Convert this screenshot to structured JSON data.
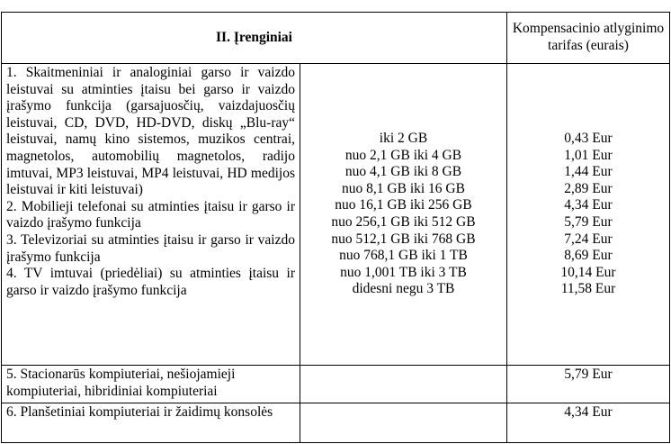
{
  "table": {
    "header": {
      "devices": "II. Įrenginiai",
      "tariff": "Kompensacinio atlyginimo tarifas (eurais)"
    },
    "rows": [
      {
        "items": [
          "1. Skaitmeniniai ir analoginiai garso ir vaizdo leistuvai su atminties įtaisu bei garso ir vaizdo įrašymo funkcija (garsajuosčių, vaizdajuosčių leistuvai, CD, DVD, HD-DVD, diskų „Blu-ray“ leistuvai, namų kino sistemos, muzikos centrai, magnetolos, automobilių magnetolos, radijo imtuvai, MP3 leistuvai, MP4 leistuvai, HD medijos leistuvai ir kiti leistuvai)",
          "2. Mobilieji telefonai su atminties įtaisu ir garso ir vaizdo įrašymo funkcija",
          "3. Televizoriai su atminties įtaisu ir garso ir vaizdo įrašymo funkcija",
          "4. TV imtuvai (priedėliai) su atminties įtaisu ir garso ir vaizdo įrašymo funkcija"
        ],
        "capacities": [
          "iki 2 GB",
          "nuo 2,1 GB iki 4 GB",
          "nuo 4,1 GB iki 8 GB",
          "nuo 8,1 GB iki 16 GB",
          "nuo 16,1 GB iki 256 GB",
          "nuo 256,1 GB iki 512 GB",
          "nuo 512,1 GB iki 768 GB",
          "nuo 768,1 GB iki 1 TB",
          "nuo 1,001 TB iki 3 TB",
          "didesni negu 3 TB"
        ],
        "tariffs": [
          "0,43 Eur",
          "1,01 Eur",
          "1,44 Eur",
          "2,89 Eur",
          "4,34 Eur",
          "5,79 Eur",
          "7,24 Eur",
          "8,69 Eur",
          "10,14 Eur",
          "11,58 Eur"
        ]
      },
      {
        "item": "5. Stacionarūs kompiuteriai, nešiojamieji kompiuteriai, hibridiniai kompiuteriai",
        "tariff": "5,79 Eur"
      },
      {
        "item": "6. Planšetiniai kompiuteriai ir žaidimų konsolės",
        "tariff": "4,34 Eur"
      }
    ]
  }
}
